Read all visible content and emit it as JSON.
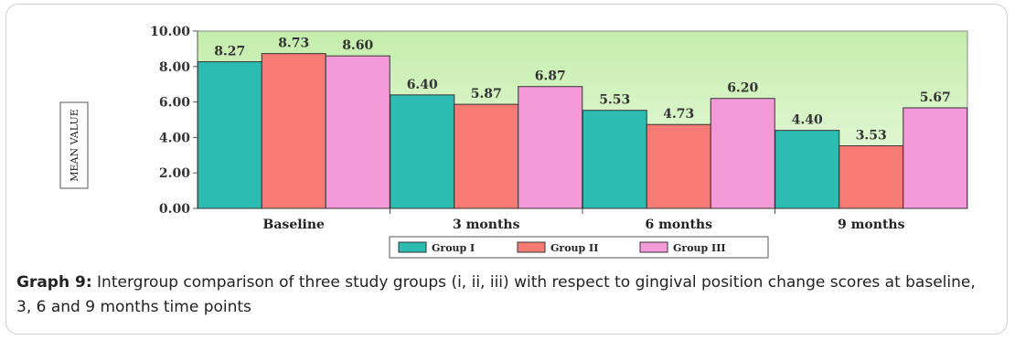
{
  "chart_data": {
    "type": "bar",
    "categories": [
      "Baseline",
      "3 months",
      "6 months",
      "9 months"
    ],
    "series": [
      {
        "name": "Group I",
        "values": [
          8.27,
          6.4,
          5.53,
          4.4
        ],
        "color": "#2cbcb2"
      },
      {
        "name": "Group II",
        "values": [
          8.73,
          5.87,
          4.73,
          3.53
        ],
        "color": "#f57b74"
      },
      {
        "name": "Group III",
        "values": [
          8.6,
          6.87,
          6.2,
          5.67
        ],
        "color": "#f59ad8"
      }
    ],
    "value_labels": [
      [
        "8.27",
        "6.40",
        "5.53",
        "4.40"
      ],
      [
        "8.73",
        "5.87",
        "4.73",
        "3.53"
      ],
      [
        "8.60",
        "6.87",
        "6.20",
        "5.67"
      ]
    ],
    "ylabel": "MEAN VALUE",
    "ylim": [
      0,
      10
    ],
    "yticks": [
      "0.00",
      "2.00",
      "4.00",
      "6.00",
      "8.00",
      "10.00"
    ],
    "grid": false,
    "legend_position": "bottom",
    "plot_background": "#d8f5c6"
  },
  "caption": {
    "label": "Graph 9:",
    "text": " Intergroup comparison of three study groups (i, ii, iii) with respect to gingival position change scores at baseline, 3, 6 and 9 months time points"
  }
}
